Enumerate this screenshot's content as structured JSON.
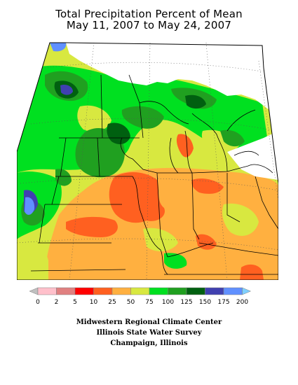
{
  "title": {
    "line1": "Total Precipitation Percent of Mean",
    "line2": "May 11, 2007 to May 24, 2007"
  },
  "legend": {
    "ticks": [
      "0",
      "2",
      "5",
      "10",
      "25",
      "50",
      "75",
      "100",
      "125",
      "150",
      "175",
      "200"
    ],
    "colors": [
      "#c0c0c0",
      "#ffc0cb",
      "#e08080",
      "#ff0000",
      "#ff6020",
      "#ffb040",
      "#d8e840",
      "#00e020",
      "#20a020",
      "#006010",
      "#4040b0",
      "#6090ff",
      "#80d0ff"
    ]
  },
  "credits": {
    "line1": "Midwestern Regional Climate Center",
    "line2": "Illinois State Water Survey",
    "line3": "Champaign, Illinois"
  }
}
